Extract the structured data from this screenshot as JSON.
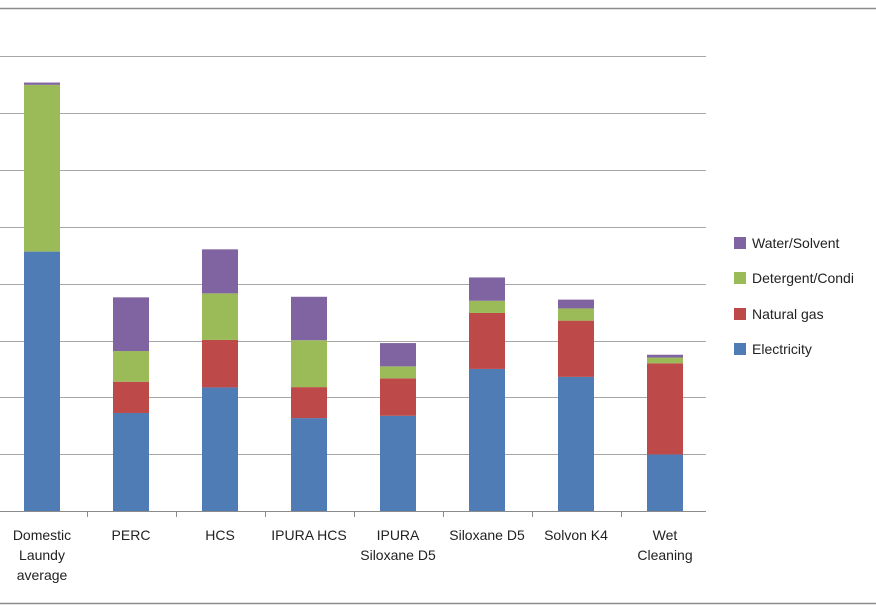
{
  "chart_data": {
    "type": "bar",
    "stacked": true,
    "categories": [
      [
        "Domestic",
        "Laundy",
        "average"
      ],
      [
        "PERC"
      ],
      [
        "HCS"
      ],
      [
        "IPURA HCS"
      ],
      [
        "IPURA",
        "Siloxane D5"
      ],
      [
        "Siloxane D5"
      ],
      [
        "Solvon K4"
      ],
      [
        "Wet",
        "Cleaning"
      ]
    ],
    "series": [
      {
        "name": "Electricity",
        "color": "#4f7cb5",
        "values": [
          91.3,
          34.5,
          43.5,
          32.7,
          33.5,
          50.0,
          47.2,
          19.9
        ]
      },
      {
        "name": "Natural gas",
        "color": "#bd4a48",
        "values": [
          0,
          11.0,
          16.7,
          10.9,
          13.2,
          19.7,
          19.8,
          32.1
        ]
      },
      {
        "name": "Detergent/Conditioner",
        "color": "#9bbb59",
        "values": [
          58.7,
          10.8,
          16.4,
          16.5,
          4.2,
          4.3,
          4.3,
          2.0
        ]
      },
      {
        "name": "Water/Solvent",
        "color": "#8064a2",
        "values": [
          0.8,
          18.9,
          15.5,
          15.3,
          8.2,
          8.2,
          3.1,
          1.0
        ]
      }
    ],
    "legend_labels": [
      "Water/Solvent",
      "Detergent/Condi",
      "Natural gas",
      "Electricity"
    ],
    "legend_position": "right",
    "ylim": [
      0,
      170
    ],
    "grid": true
  }
}
